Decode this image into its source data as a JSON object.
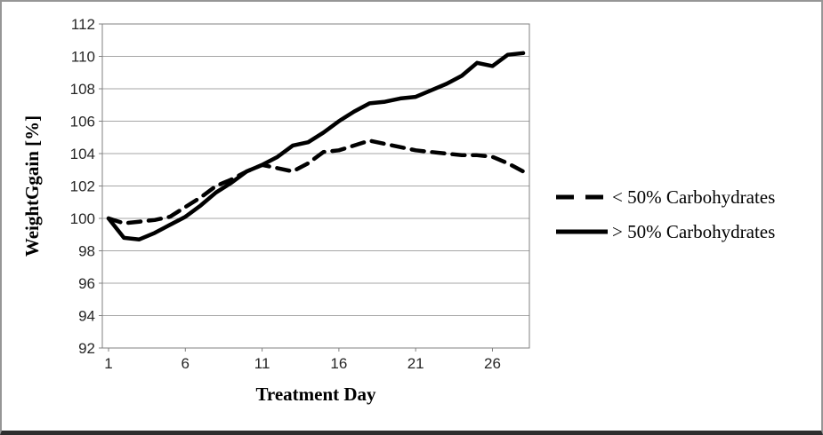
{
  "chart_data": {
    "type": "line",
    "title": "",
    "xlabel": "Treatment Day",
    "ylabel": "WeightGgain [%]",
    "x": [
      1,
      2,
      3,
      4,
      5,
      6,
      7,
      8,
      9,
      10,
      11,
      12,
      13,
      14,
      15,
      16,
      17,
      18,
      19,
      20,
      21,
      22,
      23,
      24,
      25,
      26,
      27,
      28
    ],
    "xticks": [
      1,
      6,
      11,
      16,
      21,
      26
    ],
    "ylim": [
      92,
      112
    ],
    "ytick_step": 2,
    "grid": true,
    "legend_position": "right",
    "series": [
      {
        "name": "< 50% Carbohydrates",
        "style": "dashed",
        "color": "#000000",
        "values": [
          100,
          99.7,
          99.8,
          99.9,
          100.1,
          100.7,
          101.3,
          102.0,
          102.4,
          102.9,
          103.3,
          103.1,
          102.9,
          103.4,
          104.1,
          104.2,
          104.5,
          104.8,
          104.6,
          104.4,
          104.2,
          104.1,
          104.0,
          103.9,
          103.9,
          103.8,
          103.4,
          102.9
        ]
      },
      {
        "name": "> 50% Carbohydrates",
        "style": "solid",
        "color": "#000000",
        "values": [
          100,
          98.8,
          98.7,
          99.1,
          99.6,
          100.1,
          100.8,
          101.6,
          102.2,
          102.9,
          103.3,
          103.8,
          104.5,
          104.7,
          105.3,
          106.0,
          106.6,
          107.1,
          107.2,
          107.4,
          107.5,
          107.9,
          108.3,
          108.8,
          109.6,
          109.4,
          110.1,
          110.2
        ]
      }
    ],
    "colors": {
      "gridline": "#a6a6a6",
      "axis": "#808080",
      "tick_text": "#262626",
      "series": "#000000",
      "frame_border": "#969696",
      "frame_bottom": "#2e2e2e"
    }
  }
}
